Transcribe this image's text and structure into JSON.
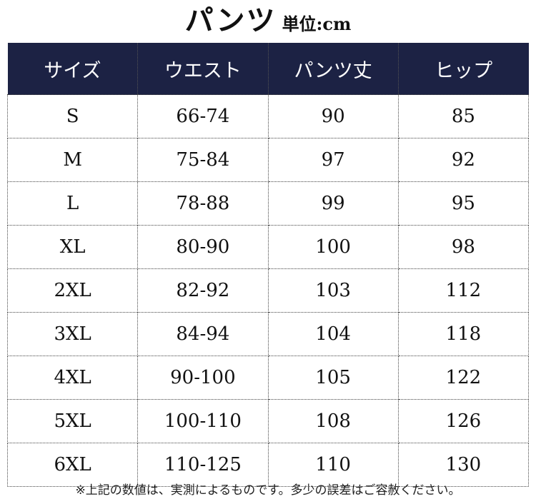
{
  "title": {
    "main": "パンツ",
    "unit": "単位:cm"
  },
  "table": {
    "headers": [
      "サイズ",
      "ウエスト",
      "パンツ丈",
      "ヒップ"
    ],
    "rows": [
      [
        "S",
        "66-74",
        "90",
        "85"
      ],
      [
        "M",
        "75-84",
        "97",
        "92"
      ],
      [
        "L",
        "78-88",
        "99",
        "95"
      ],
      [
        "XL",
        "80-90",
        "100",
        "98"
      ],
      [
        "2XL",
        "82-92",
        "103",
        "112"
      ],
      [
        "3XL",
        "84-94",
        "104",
        "118"
      ],
      [
        "4XL",
        "90-100",
        "105",
        "122"
      ],
      [
        "5XL",
        "100-110",
        "108",
        "126"
      ],
      [
        "6XL",
        "110-125",
        "110",
        "130"
      ]
    ]
  },
  "note": "※上記の数値は、実測によるものです。多少の誤差はご容赦ください。",
  "colors": {
    "header_bg": "#1c2244",
    "header_text": "#ffffff"
  }
}
